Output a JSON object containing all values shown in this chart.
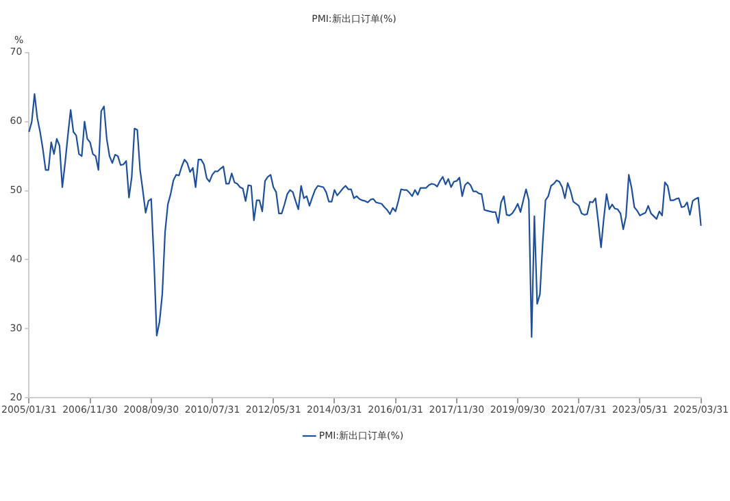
{
  "chart_data": {
    "type": "line",
    "title": "PMI:新出口订单(%)",
    "ylabel": "%",
    "categories": [
      "2005/01/31",
      null,
      null,
      null,
      null,
      null,
      null,
      null,
      null,
      null,
      null,
      null,
      null,
      null,
      null,
      null,
      null,
      null,
      null,
      null,
      null,
      null,
      "2006/11/30",
      null,
      null,
      null,
      null,
      null,
      null,
      null,
      null,
      null,
      null,
      null,
      null,
      null,
      null,
      null,
      null,
      null,
      null,
      null,
      null,
      null,
      "2008/09/30",
      null,
      null,
      null,
      null,
      null,
      null,
      null,
      null,
      null,
      null,
      null,
      null,
      null,
      null,
      null,
      null,
      null,
      null,
      null,
      null,
      null,
      "2010/07/31",
      null,
      null,
      null,
      null,
      null,
      null,
      null,
      null,
      null,
      null,
      null,
      null,
      null,
      null,
      null,
      null,
      null,
      null,
      null,
      null,
      null,
      "2012/05/31",
      null,
      null,
      null,
      null,
      null,
      null,
      null,
      null,
      null,
      null,
      null,
      null,
      null,
      null,
      null,
      null,
      null,
      null,
      null,
      null,
      null,
      "2014/03/31",
      null,
      null,
      null,
      null,
      null,
      null,
      null,
      null,
      null,
      null,
      null,
      null,
      null,
      null,
      null,
      null,
      null,
      null,
      null,
      null,
      null,
      "2016/01/31",
      null,
      null,
      null,
      null,
      null,
      null,
      null,
      null,
      null,
      null,
      null,
      null,
      null,
      null,
      null,
      null,
      null,
      null,
      null,
      null,
      null,
      "2017/11/30",
      null,
      null,
      null,
      null,
      null,
      null,
      null,
      null,
      null,
      null,
      null,
      null,
      null,
      null,
      null,
      null,
      null,
      null,
      null,
      null,
      null,
      "2019/09/30",
      null,
      null,
      null,
      null,
      null,
      null,
      null,
      null,
      null,
      null,
      null,
      null,
      null,
      null,
      null,
      null,
      null,
      null,
      null,
      null,
      null,
      "2021/07/31",
      null,
      null,
      null,
      null,
      null,
      null,
      null,
      null,
      null,
      null,
      null,
      null,
      null,
      null,
      null,
      null,
      null,
      null,
      null,
      null,
      null,
      "2023/05/31",
      null,
      null,
      null,
      null,
      null,
      null,
      null,
      null,
      null,
      null,
      null,
      null,
      null,
      null,
      null,
      null,
      null,
      null,
      null,
      null,
      null,
      "2025/03/31"
    ],
    "series": [
      {
        "name": "PMI:新出口订单(%)",
        "color": "#1d4f9f",
        "values": [
          58.5,
          60,
          64,
          60.5,
          58.5,
          56,
          53,
          53,
          57,
          55.3,
          57.5,
          56.5,
          50.5,
          54,
          58,
          61.7,
          58.5,
          58,
          55.3,
          55,
          60,
          57.5,
          57,
          55.3,
          55,
          53,
          61.5,
          62.2,
          57.5,
          55,
          54,
          55.2,
          55,
          53.7,
          53.8,
          54.3,
          49,
          52,
          59,
          58.8,
          53,
          50,
          46.8,
          48.5,
          48.8,
          40,
          29,
          31,
          35,
          44,
          48,
          49.5,
          51.5,
          52.3,
          52.2,
          53.5,
          54.5,
          54,
          52.7,
          53.3,
          50.5,
          54.5,
          54.5,
          53.8,
          51.8,
          51.3,
          52.3,
          52.8,
          52.8,
          53.2,
          53.5,
          51,
          51,
          52.5,
          51.2,
          51,
          50.5,
          50.3,
          48.5,
          50.8,
          50.7,
          45.7,
          48.6,
          48.6,
          47,
          51.4,
          52,
          52.3,
          50.5,
          49.8,
          46.7,
          46.7,
          48,
          49.5,
          50.1,
          49.8,
          48.5,
          47.3,
          50.7,
          48.9,
          49.2,
          47.8,
          49,
          50.1,
          50.7,
          50.6,
          50.5,
          49.8,
          48.4,
          48.4,
          50.1,
          49.3,
          49.8,
          50.3,
          50.7,
          50.2,
          50.2,
          48.9,
          49.2,
          48.8,
          48.6,
          48.5,
          48.3,
          48.7,
          48.8,
          48.3,
          48.2,
          48.1,
          47.6,
          47.2,
          46.6,
          47.5,
          47,
          48.5,
          50.2,
          50.1,
          50.1,
          49.7,
          49.2,
          50.1,
          49.4,
          50.4,
          50.4,
          50.4,
          50.8,
          51,
          50.9,
          50.6,
          51.4,
          52,
          50.9,
          51.7,
          50.5,
          51.3,
          51.4,
          51.9,
          49.2,
          50.8,
          51.2,
          50.8,
          49.9,
          49.9,
          49.6,
          49.5,
          47.2,
          47.1,
          47,
          46.9,
          46.9,
          45.3,
          48.3,
          49.2,
          46.5,
          46.4,
          46.7,
          47.3,
          48.1,
          46.9,
          48.6,
          50.2,
          48.6,
          28.8,
          46.3,
          33.6,
          35,
          42.5,
          48.6,
          49.2,
          50.7,
          51,
          51.5,
          51.3,
          50.5,
          48.9,
          51.1,
          50,
          48.4,
          48.1,
          47.8,
          46.7,
          46.5,
          46.6,
          48.4,
          48.3,
          48.9,
          45.5,
          41.8,
          46,
          49.5,
          47.3,
          48,
          47.4,
          47.3,
          46.7,
          44.4,
          46.3,
          52.3,
          50.4,
          47.6,
          47.1,
          46.4,
          46.6,
          46.8,
          47.8,
          46.7,
          46.3,
          45.9,
          47,
          46.4,
          51.2,
          50.7,
          48.6,
          48.6,
          48.8,
          48.9,
          47.6,
          47.7,
          48.3,
          46.5,
          48.5,
          48.8,
          49,
          44.9
        ]
      }
    ],
    "ylim": [
      20,
      70
    ],
    "yticks": [
      20,
      30,
      40,
      50,
      60,
      70
    ],
    "grid": false,
    "legend": "bottom",
    "marker": "none",
    "line_style": "solid"
  }
}
